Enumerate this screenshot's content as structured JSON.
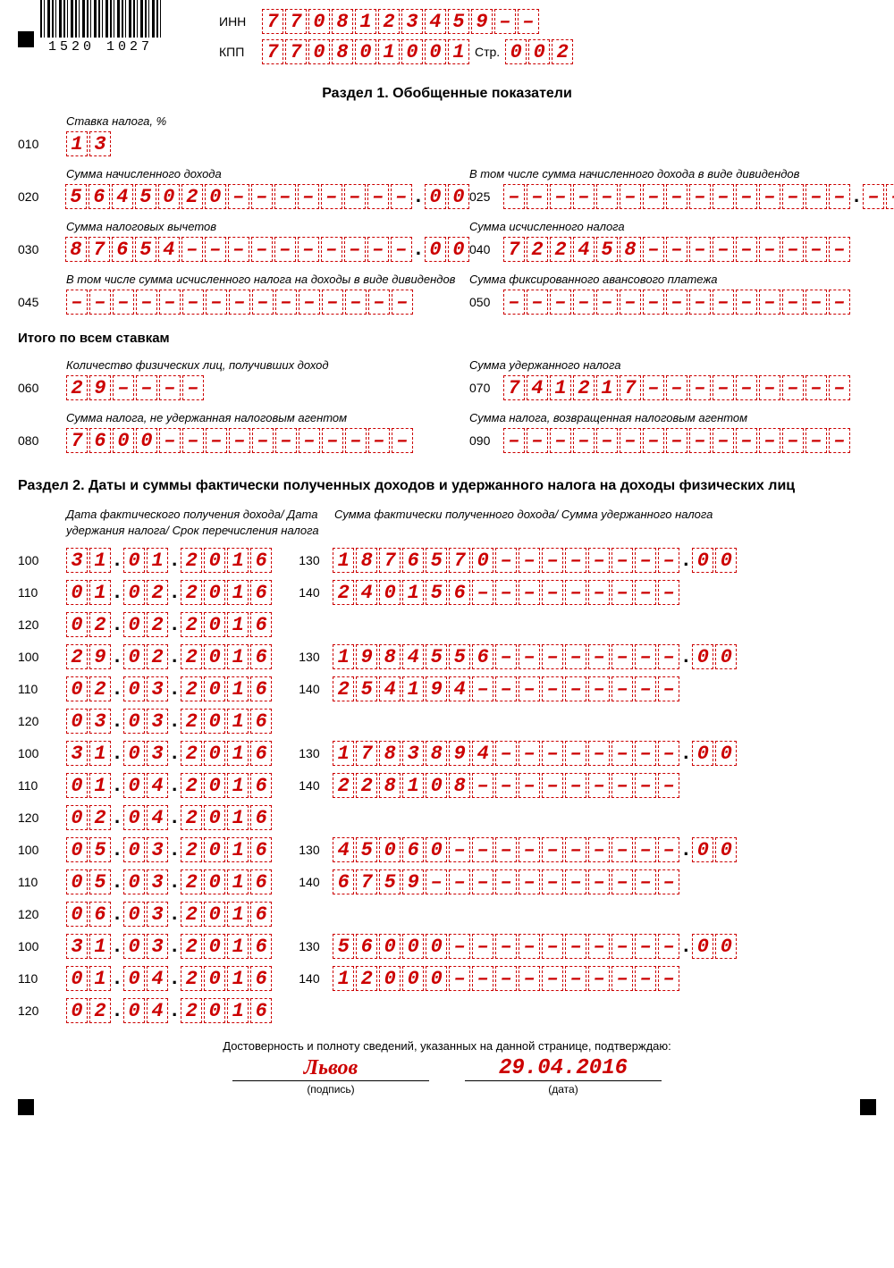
{
  "barcode_number": "1520 1027",
  "header": {
    "inn_label": "ИНН",
    "inn": "7708123459--",
    "kpp_label": "КПП",
    "kpp": "770801001",
    "page_label": "Стр.",
    "page": "002"
  },
  "section1": {
    "title": "Раздел 1. Обобщенные показатели",
    "rate_label": "Ставка налога, %",
    "rate_code": "010",
    "rate": "13",
    "f020_label": "Сумма начисленного дохода",
    "f020": "5645020--------",
    "f020_dec": "00",
    "f025_label": "В том числе сумма начисленного дохода в виде дивидендов",
    "f025": "---------------",
    "f025_dec": "--",
    "f030_label": "Сумма налоговых вычетов",
    "f030": "87654----------",
    "f030_dec": "00",
    "f040_label": "Сумма исчисленного налога",
    "f040": "722458---------",
    "f045_label": "В том числе сумма исчисленного налога на доходы в виде дивидендов",
    "f045": "---------------",
    "f050_label": "Сумма фиксированного авансового платежа",
    "f050": "---------------",
    "total_label": "Итого по всем ставкам",
    "f060_label": "Количество физических лиц, получивших доход",
    "f060": "29----",
    "f070_label": "Сумма удержанного налога",
    "f070": "741217---------",
    "f080_label": "Сумма налога, не удержанная налоговым агентом",
    "f080": "7600-----------",
    "f090_label": "Сумма налога, возвращенная налоговым агентом",
    "f090": "---------------"
  },
  "section2": {
    "title": "Раздел 2. Даты и суммы фактически полученных доходов и удержанного налога на доходы физических лиц",
    "left_head": "Дата фактического получения дохода/\nДата удержания налога/\nСрок перечисления налога",
    "right_head": "Сумма фактически полученного дохода/\nСумма удержанного налога",
    "blocks": [
      {
        "d100": "31.01.2016",
        "d110": "01.02.2016",
        "d120": "02.02.2016",
        "s130": "1876570--------",
        "s130d": "00",
        "s140": "240156---------"
      },
      {
        "d100": "29.02.2016",
        "d110": "02.03.2016",
        "d120": "03.03.2016",
        "s130": "1984556--------",
        "s130d": "00",
        "s140": "254194---------"
      },
      {
        "d100": "31.03.2016",
        "d110": "01.04.2016",
        "d120": "02.04.2016",
        "s130": "1783894--------",
        "s130d": "00",
        "s140": "228108---------"
      },
      {
        "d100": "05.03.2016",
        "d110": "05.03.2016",
        "d120": "06.03.2016",
        "s130": "45060----------",
        "s130d": "00",
        "s140": "6759-----------"
      },
      {
        "d100": "31.03.2016",
        "d110": "01.04.2016",
        "d120": "02.04.2016",
        "s130": "56000----------",
        "s130d": "00",
        "s140": "12000----------"
      }
    ]
  },
  "footer": {
    "confirm": "Достоверность и полноту сведений, указанных на данной странице, подтверждаю:",
    "signature": "Львов",
    "sig_cap": "(подпись)",
    "date": "29.04.2016",
    "date_cap": "(дата)"
  },
  "style": {
    "cell_border": "#c00",
    "cell_text": "#c00"
  }
}
